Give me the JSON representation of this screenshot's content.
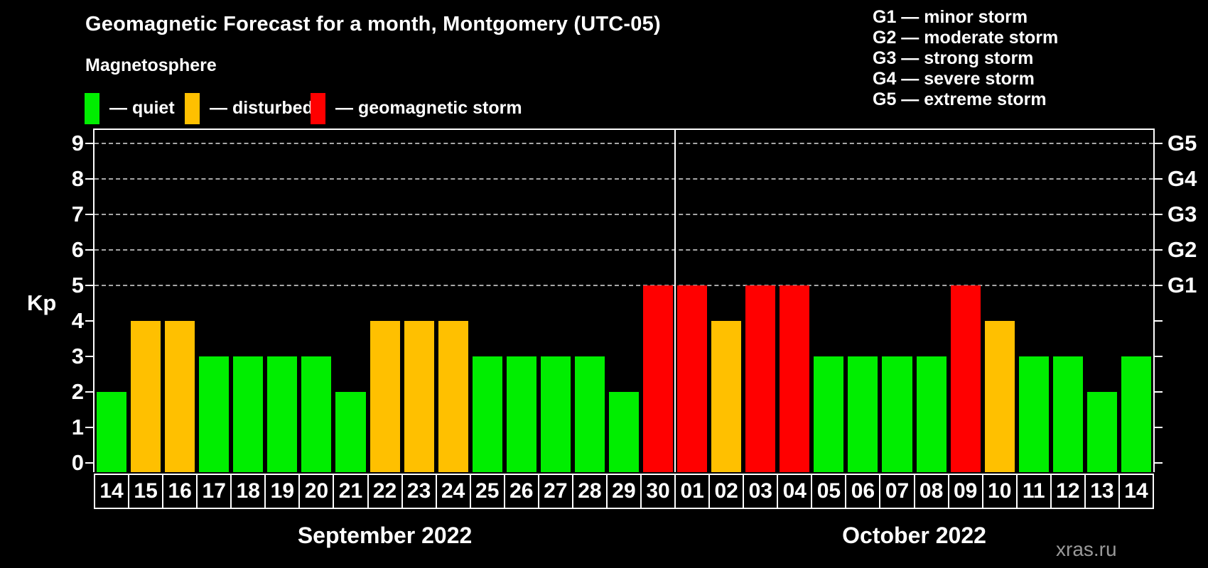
{
  "title": "Geomagnetic Forecast for a month, Montgomery (UTC-05)",
  "subtitle": "Magnetosphere",
  "legend": {
    "items": [
      {
        "status": "quiet",
        "label": "— quiet",
        "color": "#00ee00"
      },
      {
        "status": "disturbed",
        "label": "— disturbed",
        "color": "#ffc000"
      },
      {
        "status": "storm",
        "label": "— geomagnetic storm",
        "color": "#ff0000"
      }
    ]
  },
  "g_scale_legend": [
    "G1 — minor storm",
    "G2 — moderate storm",
    "G3 — strong storm",
    "G4 — severe storm",
    "G5 — extreme storm"
  ],
  "watermark": "xras.ru",
  "chart_data": {
    "type": "bar",
    "title": "Geomagnetic Forecast for a month, Montgomery (UTC-05)",
    "ylabel": "Kp",
    "ylim": [
      0,
      9.4
    ],
    "yticks": [
      0,
      1,
      2,
      3,
      4,
      5,
      6,
      7,
      8,
      9
    ],
    "grid_dashed_at": [
      5,
      6,
      7,
      8,
      9
    ],
    "grid": "dashed horizontal at Kp 5-9 only",
    "legend_position": "top",
    "right_axis": [
      {
        "kp": 5,
        "label": "G1"
      },
      {
        "kp": 6,
        "label": "G2"
      },
      {
        "kp": 7,
        "label": "G3"
      },
      {
        "kp": 8,
        "label": "G4"
      },
      {
        "kp": 9,
        "label": "G5"
      }
    ],
    "months": [
      {
        "label": "September 2022",
        "short": "sep",
        "days": 17
      },
      {
        "label": "October 2022",
        "short": "oct",
        "days": 14
      }
    ],
    "categories": [
      "14",
      "15",
      "16",
      "17",
      "18",
      "19",
      "20",
      "21",
      "22",
      "23",
      "24",
      "25",
      "26",
      "27",
      "28",
      "29",
      "30",
      "01",
      "02",
      "03",
      "04",
      "05",
      "06",
      "07",
      "08",
      "09",
      "10",
      "11",
      "12",
      "13",
      "14"
    ],
    "values": [
      2,
      4,
      4,
      3,
      3,
      3,
      3,
      2,
      4,
      4,
      4,
      3,
      3,
      3,
      3,
      2,
      5,
      5,
      4,
      5,
      5,
      3,
      3,
      3,
      3,
      5,
      4,
      3,
      3,
      2,
      3
    ],
    "statuses": [
      "quiet",
      "disturbed",
      "disturbed",
      "quiet",
      "quiet",
      "quiet",
      "quiet",
      "quiet",
      "disturbed",
      "disturbed",
      "disturbed",
      "quiet",
      "quiet",
      "quiet",
      "quiet",
      "quiet",
      "storm",
      "storm",
      "disturbed",
      "storm",
      "storm",
      "quiet",
      "quiet",
      "quiet",
      "quiet",
      "storm",
      "disturbed",
      "quiet",
      "quiet",
      "quiet",
      "quiet"
    ],
    "status_colors": {
      "quiet": "#00ee00",
      "disturbed": "#ffc000",
      "storm": "#ff0000"
    }
  }
}
